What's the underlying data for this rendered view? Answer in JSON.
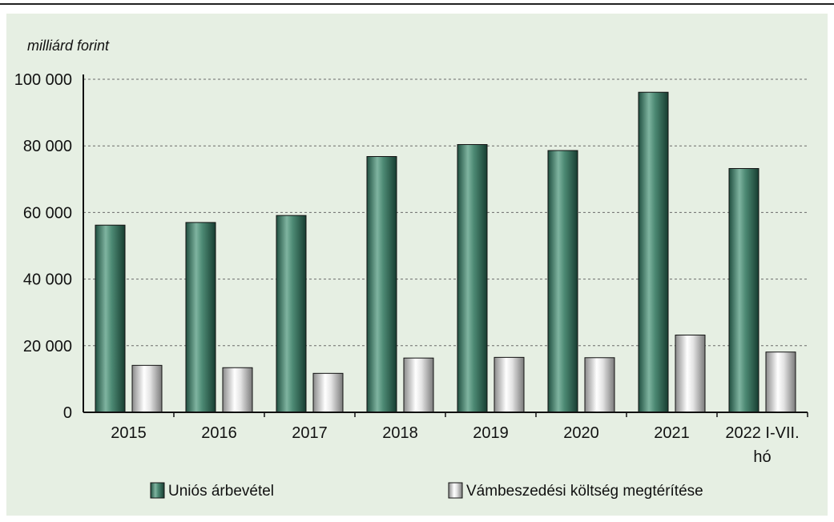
{
  "chart_data": {
    "type": "bar",
    "unit_label": "milliárd forint",
    "categories": [
      "2015",
      "2016",
      "2017",
      "2018",
      "2019",
      "2020",
      "2021",
      [
        "2022 I-VII.",
        "hó"
      ]
    ],
    "series": [
      {
        "name": "Uniós árbevétel",
        "color": "#2f6b57",
        "values": [
          56200,
          57000,
          59100,
          76800,
          80400,
          78600,
          96100,
          73200
        ]
      },
      {
        "name": "Vámbeszedési költség megtérítése",
        "color": "#c8c8c8",
        "values": [
          14100,
          13400,
          11700,
          16300,
          16500,
          16400,
          23200,
          18100
        ]
      }
    ],
    "y_ticks": [
      0,
      20000,
      40000,
      60000,
      80000,
      100000
    ],
    "y_tick_labels": [
      "0",
      "20 000",
      "40 000",
      "60 000",
      "80 000",
      "100 000"
    ],
    "ylim": [
      0,
      100000
    ],
    "grid": "horizontal dashed",
    "legend": "bottom"
  }
}
